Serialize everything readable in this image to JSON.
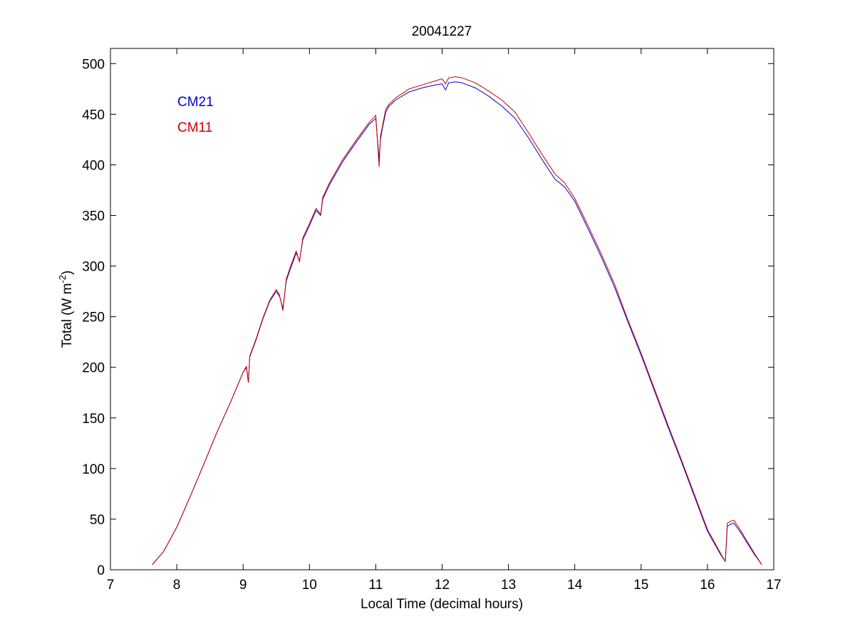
{
  "chart_data": {
    "type": "line",
    "title": "20041227",
    "xlabel": "Local Time (decimal hours)",
    "ylabel_main": "Total (W m",
    "ylabel_sup": "-2",
    "ylabel_close": ")",
    "xlim": [
      7,
      17
    ],
    "ylim": [
      0,
      515
    ],
    "xticks": [
      7,
      8,
      9,
      10,
      11,
      12,
      13,
      14,
      15,
      16,
      17
    ],
    "yticks": [
      0,
      50,
      100,
      150,
      200,
      250,
      300,
      350,
      400,
      450,
      500
    ],
    "grid": false,
    "legend_position": "top-left",
    "series": [
      {
        "name": "CM21",
        "color": "#0000cc",
        "x": [
          7.63,
          7.8,
          8.0,
          8.2,
          8.4,
          8.6,
          8.8,
          9.0,
          9.05,
          9.08,
          9.1,
          9.2,
          9.3,
          9.4,
          9.5,
          9.55,
          9.6,
          9.65,
          9.7,
          9.8,
          9.85,
          9.9,
          10.0,
          10.1,
          10.17,
          10.2,
          10.3,
          10.5,
          10.7,
          10.9,
          11.0,
          11.05,
          11.07,
          11.1,
          11.15,
          11.2,
          11.3,
          11.5,
          11.7,
          11.9,
          12.0,
          12.05,
          12.1,
          12.2,
          12.3,
          12.5,
          12.7,
          12.9,
          13.1,
          13.3,
          13.5,
          13.7,
          13.85,
          14.0,
          14.2,
          14.4,
          14.6,
          14.8,
          15.0,
          15.2,
          15.4,
          15.6,
          15.8,
          16.0,
          16.2,
          16.27,
          16.3,
          16.35,
          16.4,
          16.5,
          16.7,
          16.82
        ],
        "y": [
          5,
          18,
          42,
          72,
          103,
          135,
          164,
          195,
          200,
          185,
          210,
          228,
          248,
          265,
          275,
          270,
          258,
          285,
          295,
          313,
          305,
          326,
          340,
          355,
          350,
          366,
          380,
          403,
          422,
          440,
          446,
          405,
          425,
          436,
          452,
          458,
          464,
          472,
          476,
          479,
          480,
          474,
          481,
          482,
          481,
          476,
          468,
          458,
          446,
          427,
          406,
          386,
          378,
          364,
          337,
          309,
          279,
          245,
          212,
          177,
          142,
          108,
          73,
          38,
          15,
          8,
          43,
          45,
          46,
          37,
          16,
          5
        ]
      },
      {
        "name": "CM11",
        "color": "#cc0000",
        "x": [
          7.63,
          7.8,
          8.0,
          8.2,
          8.4,
          8.6,
          8.8,
          9.0,
          9.05,
          9.08,
          9.1,
          9.2,
          9.3,
          9.4,
          9.5,
          9.55,
          9.6,
          9.65,
          9.7,
          9.8,
          9.85,
          9.9,
          10.0,
          10.1,
          10.17,
          10.2,
          10.3,
          10.5,
          10.7,
          10.9,
          11.0,
          11.05,
          11.07,
          11.1,
          11.15,
          11.2,
          11.3,
          11.5,
          11.7,
          11.9,
          12.0,
          12.05,
          12.1,
          12.2,
          12.3,
          12.5,
          12.7,
          12.9,
          13.1,
          13.3,
          13.5,
          13.7,
          13.85,
          14.0,
          14.2,
          14.4,
          14.6,
          14.8,
          15.0,
          15.2,
          15.4,
          15.6,
          15.8,
          16.0,
          16.2,
          16.27,
          16.3,
          16.35,
          16.4,
          16.5,
          16.7,
          16.82
        ],
        "y": [
          5,
          18,
          42,
          72,
          103,
          135,
          164,
          195,
          201,
          185,
          211,
          229,
          249,
          266,
          277,
          271,
          256,
          287,
          297,
          315,
          304,
          328,
          342,
          357,
          351,
          368,
          382,
          405,
          424,
          442,
          449,
          398,
          428,
          438,
          455,
          460,
          466,
          475,
          479,
          483,
          485,
          480,
          486,
          487,
          486,
          481,
          473,
          464,
          452,
          432,
          411,
          391,
          382,
          367,
          340,
          312,
          282,
          247,
          214,
          179,
          144,
          110,
          75,
          40,
          16,
          8,
          46,
          48,
          49,
          39,
          17,
          5
        ]
      }
    ]
  }
}
